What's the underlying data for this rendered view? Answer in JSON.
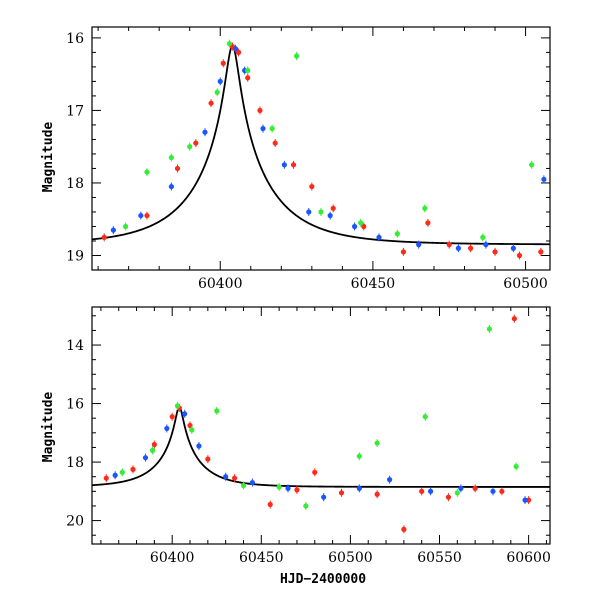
{
  "chart_data": [
    {
      "type": "scatter",
      "title": "",
      "xlabel": "",
      "ylabel": "Magnitude",
      "xlim": [
        60358,
        60508
      ],
      "ylim": [
        19.2,
        15.85
      ],
      "y_inverted": true,
      "x_ticks": [
        60400,
        60450,
        60500
      ],
      "x_tick_labels": [
        "60400",
        "60450",
        "60500"
      ],
      "y_ticks": [
        16,
        17,
        18,
        19
      ],
      "y_tick_labels": [
        "16",
        "17",
        "18",
        "19"
      ],
      "grid": false,
      "legend": "none",
      "model": {
        "t0": 60404,
        "u0": 0.08,
        "tE": 24,
        "base": 18.85,
        "fs": 1.0,
        "color": "#000000"
      },
      "series": [
        {
          "color": "#ff2a1a",
          "points": [
            [
              60362,
              18.75
            ],
            [
              60376,
              18.45
            ],
            [
              60386,
              17.8
            ],
            [
              60392,
              17.45
            ],
            [
              60397,
              16.9
            ],
            [
              60401,
              16.35
            ],
            [
              60404,
              16.12
            ],
            [
              60406,
              16.2
            ],
            [
              60409,
              16.55
            ],
            [
              60413,
              17.0
            ],
            [
              60418,
              17.45
            ],
            [
              60424,
              17.75
            ],
            [
              60430,
              18.05
            ],
            [
              60437,
              18.35
            ],
            [
              60447,
              18.6
            ],
            [
              60460,
              18.95
            ],
            [
              60468,
              18.55
            ],
            [
              60475,
              18.85
            ],
            [
              60482,
              18.9
            ],
            [
              60490,
              18.95
            ],
            [
              60498,
              19.0
            ],
            [
              60505,
              18.95
            ]
          ]
        },
        {
          "color": "#1a55ff",
          "points": [
            [
              60365,
              18.65
            ],
            [
              60374,
              18.45
            ],
            [
              60384,
              18.05
            ],
            [
              60395,
              17.3
            ],
            [
              60400,
              16.6
            ],
            [
              60405,
              16.15
            ],
            [
              60408,
              16.45
            ],
            [
              60414,
              17.25
            ],
            [
              60421,
              17.75
            ],
            [
              60429,
              18.4
            ],
            [
              60436,
              18.45
            ],
            [
              60444,
              18.6
            ],
            [
              60452,
              18.75
            ],
            [
              60465,
              18.85
            ],
            [
              60478,
              18.9
            ],
            [
              60487,
              18.85
            ],
            [
              60496,
              18.9
            ],
            [
              60506,
              17.95
            ]
          ]
        },
        {
          "color": "#33ee33",
          "points": [
            [
              60369,
              18.6
            ],
            [
              60376,
              17.85
            ],
            [
              60384,
              17.65
            ],
            [
              60390,
              17.5
            ],
            [
              60399,
              16.75
            ],
            [
              60403,
              16.08
            ],
            [
              60409,
              16.45
            ],
            [
              60417,
              17.25
            ],
            [
              60425,
              16.25
            ],
            [
              60433,
              18.4
            ],
            [
              60446,
              18.55
            ],
            [
              60458,
              18.7
            ],
            [
              60467,
              18.35
            ],
            [
              60486,
              18.75
            ],
            [
              60502,
              17.75
            ]
          ]
        }
      ]
    },
    {
      "type": "scatter",
      "title": "",
      "xlabel": "HJD−2400000",
      "ylabel": "Magnitude",
      "xlim": [
        60355,
        60612
      ],
      "ylim": [
        20.8,
        12.7
      ],
      "y_inverted": true,
      "x_ticks": [
        60400,
        60450,
        60500,
        60550,
        60600
      ],
      "x_tick_labels": [
        "60400",
        "60450",
        "60500",
        "60550",
        "60600"
      ],
      "y_ticks": [
        14,
        16,
        18,
        20
      ],
      "y_tick_labels": [
        "14",
        "16",
        "18",
        "20"
      ],
      "grid": false,
      "legend": "none",
      "model": {
        "t0": 60404,
        "u0": 0.08,
        "tE": 24,
        "base": 18.85,
        "fs": 1.0,
        "color": "#000000"
      },
      "series": [
        {
          "color": "#ff2a1a",
          "points": [
            [
              60363,
              18.55
            ],
            [
              60378,
              18.25
            ],
            [
              60390,
              17.4
            ],
            [
              60400,
              16.45
            ],
            [
              60404,
              16.15
            ],
            [
              60410,
              16.75
            ],
            [
              60420,
              17.9
            ],
            [
              60435,
              18.55
            ],
            [
              60455,
              19.45
            ],
            [
              60470,
              18.95
            ],
            [
              60480,
              18.35
            ],
            [
              60495,
              19.05
            ],
            [
              60515,
              19.1
            ],
            [
              60530,
              20.3
            ],
            [
              60540,
              19.0
            ],
            [
              60555,
              19.2
            ],
            [
              60570,
              18.9
            ],
            [
              60585,
              19.0
            ],
            [
              60592,
              13.1
            ],
            [
              60600,
              19.3
            ]
          ]
        },
        {
          "color": "#1a55ff",
          "points": [
            [
              60368,
              18.45
            ],
            [
              60385,
              17.85
            ],
            [
              60397,
              16.85
            ],
            [
              60407,
              16.35
            ],
            [
              60415,
              17.45
            ],
            [
              60430,
              18.5
            ],
            [
              60445,
              18.7
            ],
            [
              60465,
              18.9
            ],
            [
              60485,
              19.2
            ],
            [
              60505,
              18.9
            ],
            [
              60522,
              18.6
            ],
            [
              60545,
              19.0
            ],
            [
              60562,
              18.9
            ],
            [
              60580,
              19.0
            ],
            [
              60598,
              19.3
            ]
          ]
        },
        {
          "color": "#33ee33",
          "points": [
            [
              60372,
              18.35
            ],
            [
              60389,
              17.6
            ],
            [
              60403,
              16.08
            ],
            [
              60411,
              16.9
            ],
            [
              60425,
              16.25
            ],
            [
              60440,
              18.8
            ],
            [
              60460,
              18.85
            ],
            [
              60475,
              19.5
            ],
            [
              60505,
              17.8
            ],
            [
              60515,
              17.35
            ],
            [
              60542,
              16.45
            ],
            [
              60560,
              19.05
            ],
            [
              60578,
              13.45
            ],
            [
              60593,
              18.15
            ]
          ]
        }
      ]
    }
  ]
}
